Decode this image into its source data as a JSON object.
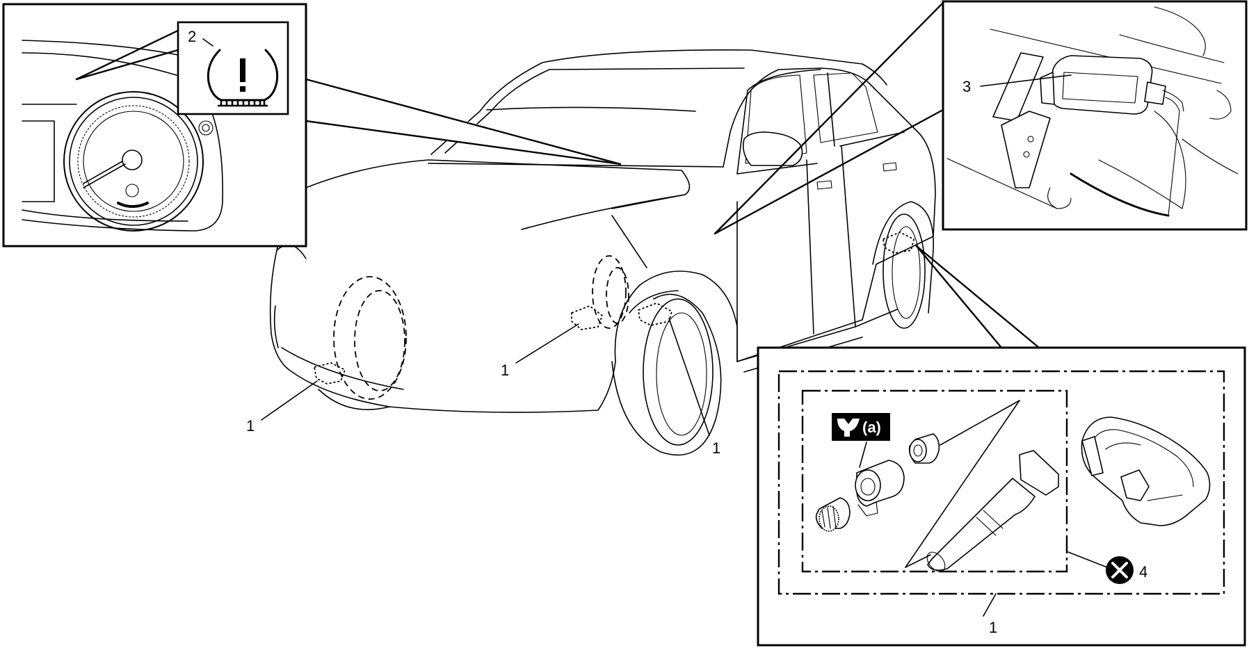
{
  "labels": {
    "sensor_front_left": "1",
    "sensor_front_right_a": "1",
    "sensor_front_right_b": "1",
    "tpms_warning_light": "2",
    "tpms_controller": "3",
    "do_not_reuse": "4",
    "sensor_detail": "1"
  },
  "tool": {
    "text": "(a)"
  },
  "icons": {
    "tpms_warning": "tpms-warning-icon",
    "wrench": "wrench-icon",
    "do_not_reuse": "cross-circle-icon"
  }
}
